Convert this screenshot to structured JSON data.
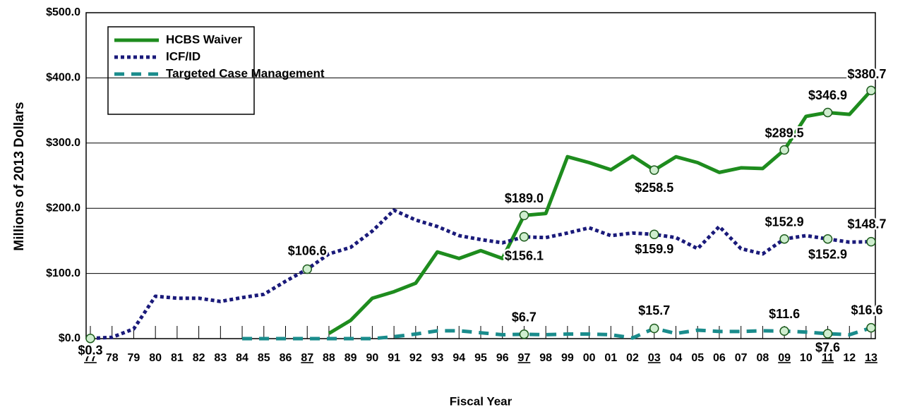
{
  "chart_data": {
    "type": "line",
    "y_label": "Millions of 2013 Dollars",
    "x_label": "Fiscal Year",
    "categories": [
      "77",
      "78",
      "79",
      "80",
      "81",
      "82",
      "83",
      "84",
      "85",
      "86",
      "87",
      "88",
      "89",
      "90",
      "91",
      "92",
      "93",
      "94",
      "95",
      "96",
      "97",
      "98",
      "99",
      "00",
      "01",
      "02",
      "03",
      "04",
      "05",
      "06",
      "07",
      "08",
      "09",
      "10",
      "11",
      "12",
      "13"
    ],
    "underlined": [
      true,
      false,
      false,
      false,
      false,
      false,
      false,
      false,
      false,
      false,
      true,
      false,
      false,
      false,
      false,
      false,
      false,
      false,
      false,
      false,
      true,
      false,
      false,
      false,
      false,
      false,
      true,
      false,
      false,
      false,
      false,
      false,
      true,
      false,
      true,
      false,
      true
    ],
    "ylim": [
      0,
      500
    ],
    "yticks": [
      {
        "value": 0,
        "label": "$0.0"
      },
      {
        "value": 100,
        "label": "$100.0"
      },
      {
        "value": 200,
        "label": "$200.0"
      },
      {
        "value": 300,
        "label": "$300.0"
      },
      {
        "value": 400,
        "label": "$400.0"
      },
      {
        "value": 500,
        "label": "$500.0"
      }
    ],
    "grid": true,
    "legend": "upper left",
    "series": [
      {
        "name": "HCBS Waiver",
        "color": "#1e8c1e",
        "style": "solid",
        "values": [
          null,
          null,
          null,
          null,
          null,
          null,
          null,
          null,
          null,
          null,
          null,
          8,
          28,
          62,
          72,
          85,
          133,
          123,
          135,
          123,
          189.0,
          192,
          279,
          270,
          259,
          280,
          258.5,
          279,
          270,
          255,
          262,
          261,
          289.5,
          341,
          346.9,
          344,
          380.7
        ],
        "value_labels": [
          null,
          null,
          null,
          null,
          null,
          null,
          null,
          null,
          null,
          null,
          null,
          null,
          null,
          null,
          null,
          null,
          null,
          null,
          null,
          null,
          "$189.0",
          null,
          null,
          null,
          null,
          null,
          "$258.5",
          null,
          null,
          null,
          null,
          null,
          "$289.5",
          null,
          "$346.9",
          null,
          "$380.7"
        ]
      },
      {
        "name": "ICF/ID",
        "color": "#1a1a7a",
        "style": "dotted",
        "values": [
          0.3,
          2,
          15,
          65,
          62,
          62,
          57,
          63,
          68,
          88,
          106.6,
          130,
          140,
          165,
          197,
          182,
          172,
          158,
          152,
          147,
          156.1,
          155,
          162,
          170,
          158,
          162,
          159.9,
          155,
          138,
          172,
          138,
          130,
          152.9,
          158,
          152.9,
          148,
          148.7
        ],
        "value_labels": [
          "$0.3",
          null,
          null,
          null,
          null,
          null,
          null,
          null,
          null,
          null,
          "$106.6",
          null,
          null,
          null,
          null,
          null,
          null,
          null,
          null,
          null,
          "$156.1",
          null,
          null,
          null,
          null,
          null,
          "$159.9",
          null,
          null,
          null,
          null,
          null,
          "$152.9",
          null,
          "$152.9",
          null,
          "$148.7"
        ]
      },
      {
        "name": "Targeted Case Management",
        "color": "#1a8c8c",
        "style": "dashed",
        "values": [
          null,
          null,
          null,
          null,
          null,
          null,
          null,
          0,
          0,
          0,
          0,
          0,
          0,
          0,
          3,
          7,
          12,
          12,
          9,
          6,
          6.7,
          6,
          7,
          7,
          6,
          1,
          15.7,
          8,
          13,
          11,
          11,
          12,
          11.6,
          10,
          7.6,
          6,
          16.6
        ],
        "value_labels": [
          null,
          null,
          null,
          null,
          null,
          null,
          null,
          null,
          null,
          null,
          null,
          null,
          null,
          null,
          null,
          null,
          null,
          null,
          null,
          null,
          "$6.7",
          null,
          null,
          null,
          null,
          null,
          "$15.7",
          null,
          null,
          null,
          null,
          null,
          "$11.6",
          null,
          "$7.6",
          null,
          "$16.6"
        ]
      }
    ]
  }
}
